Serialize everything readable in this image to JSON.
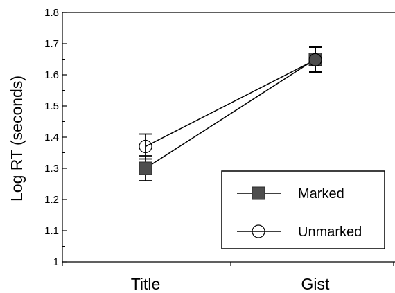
{
  "chart_data": {
    "type": "line",
    "categories": [
      "Title",
      "Gist"
    ],
    "ylabel": "Log RT (seconds)",
    "ylim": [
      1.0,
      1.8
    ],
    "yticks": [
      1,
      1.1,
      1.2,
      1.3,
      1.4,
      1.5,
      1.6,
      1.7,
      1.8
    ],
    "ytick_labels": [
      "1",
      "1.1",
      "1.2",
      "1.3",
      "1.4",
      "1.5",
      "1.6",
      "1.7",
      "1.8"
    ],
    "grid": false,
    "legend_position": "bottom-right",
    "series": [
      {
        "name": "Marked",
        "marker": "filled-square",
        "color": "#4d4d4d",
        "values": [
          1.3,
          1.65
        ],
        "error": [
          0.04,
          0.04
        ]
      },
      {
        "name": "Unmarked",
        "marker": "open-circle",
        "color": "#000000",
        "values": [
          1.37,
          1.648
        ],
        "error": [
          0.04,
          0.04
        ]
      }
    ]
  }
}
